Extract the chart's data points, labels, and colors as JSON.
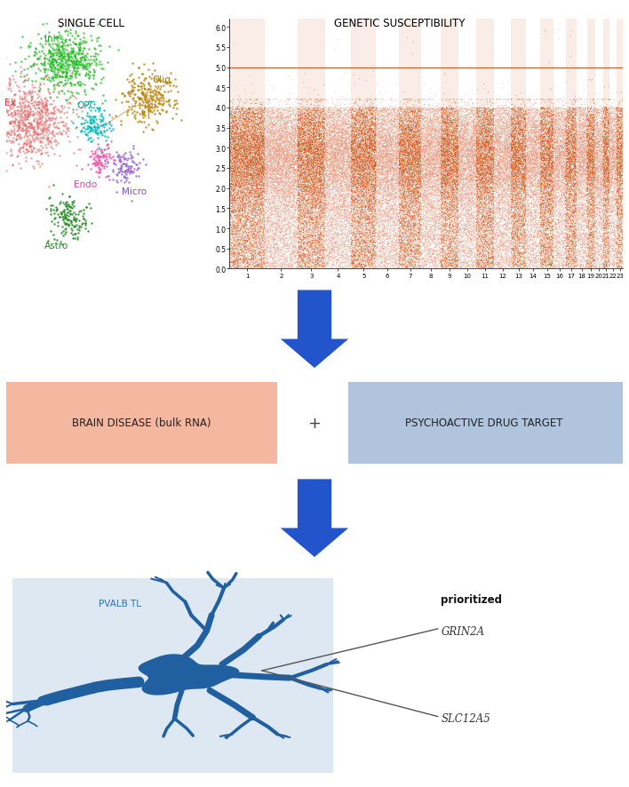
{
  "title_single_cell": "SINGLE CELL",
  "title_genetic": "GENETIC SUSCEPTIBILITY",
  "manhattan_dark_color": "#cc4400",
  "manhattan_light_color": "#e8896a",
  "manhattan_bg_dark": "#f5d5c8",
  "manhattan_bg_light": "#ffffff",
  "manhattan_line_color": "#b87040",
  "manhattan_threshold": 5.0,
  "manhattan_ylim": [
    0,
    6.2
  ],
  "manhattan_yticks": [
    0.0,
    0.5,
    1.0,
    1.5,
    2.0,
    2.5,
    3.0,
    3.5,
    4.0,
    4.5,
    5.0,
    5.5,
    6.0
  ],
  "manhattan_chromosomes": 23,
  "box1_text": "BRAIN DISEASE (bulk RNA)",
  "box1_color": "#f4b8a0",
  "box2_text": "PSYCHOACTIVE DRUG TARGET",
  "box2_color": "#b0c4de",
  "plus_sign": "+",
  "arrow_color": "#2255cc",
  "neuron_color": "#2060a0",
  "neuron_label": "PVALB TL",
  "neuron_label_color": "#3070b0",
  "prioritized_label": "prioritized",
  "gene1": "GRIN2A",
  "gene2": "SLC12A5",
  "gene_color": "#333333",
  "neuron_bg_color": "#dde8f2",
  "background_color": "#ffffff"
}
